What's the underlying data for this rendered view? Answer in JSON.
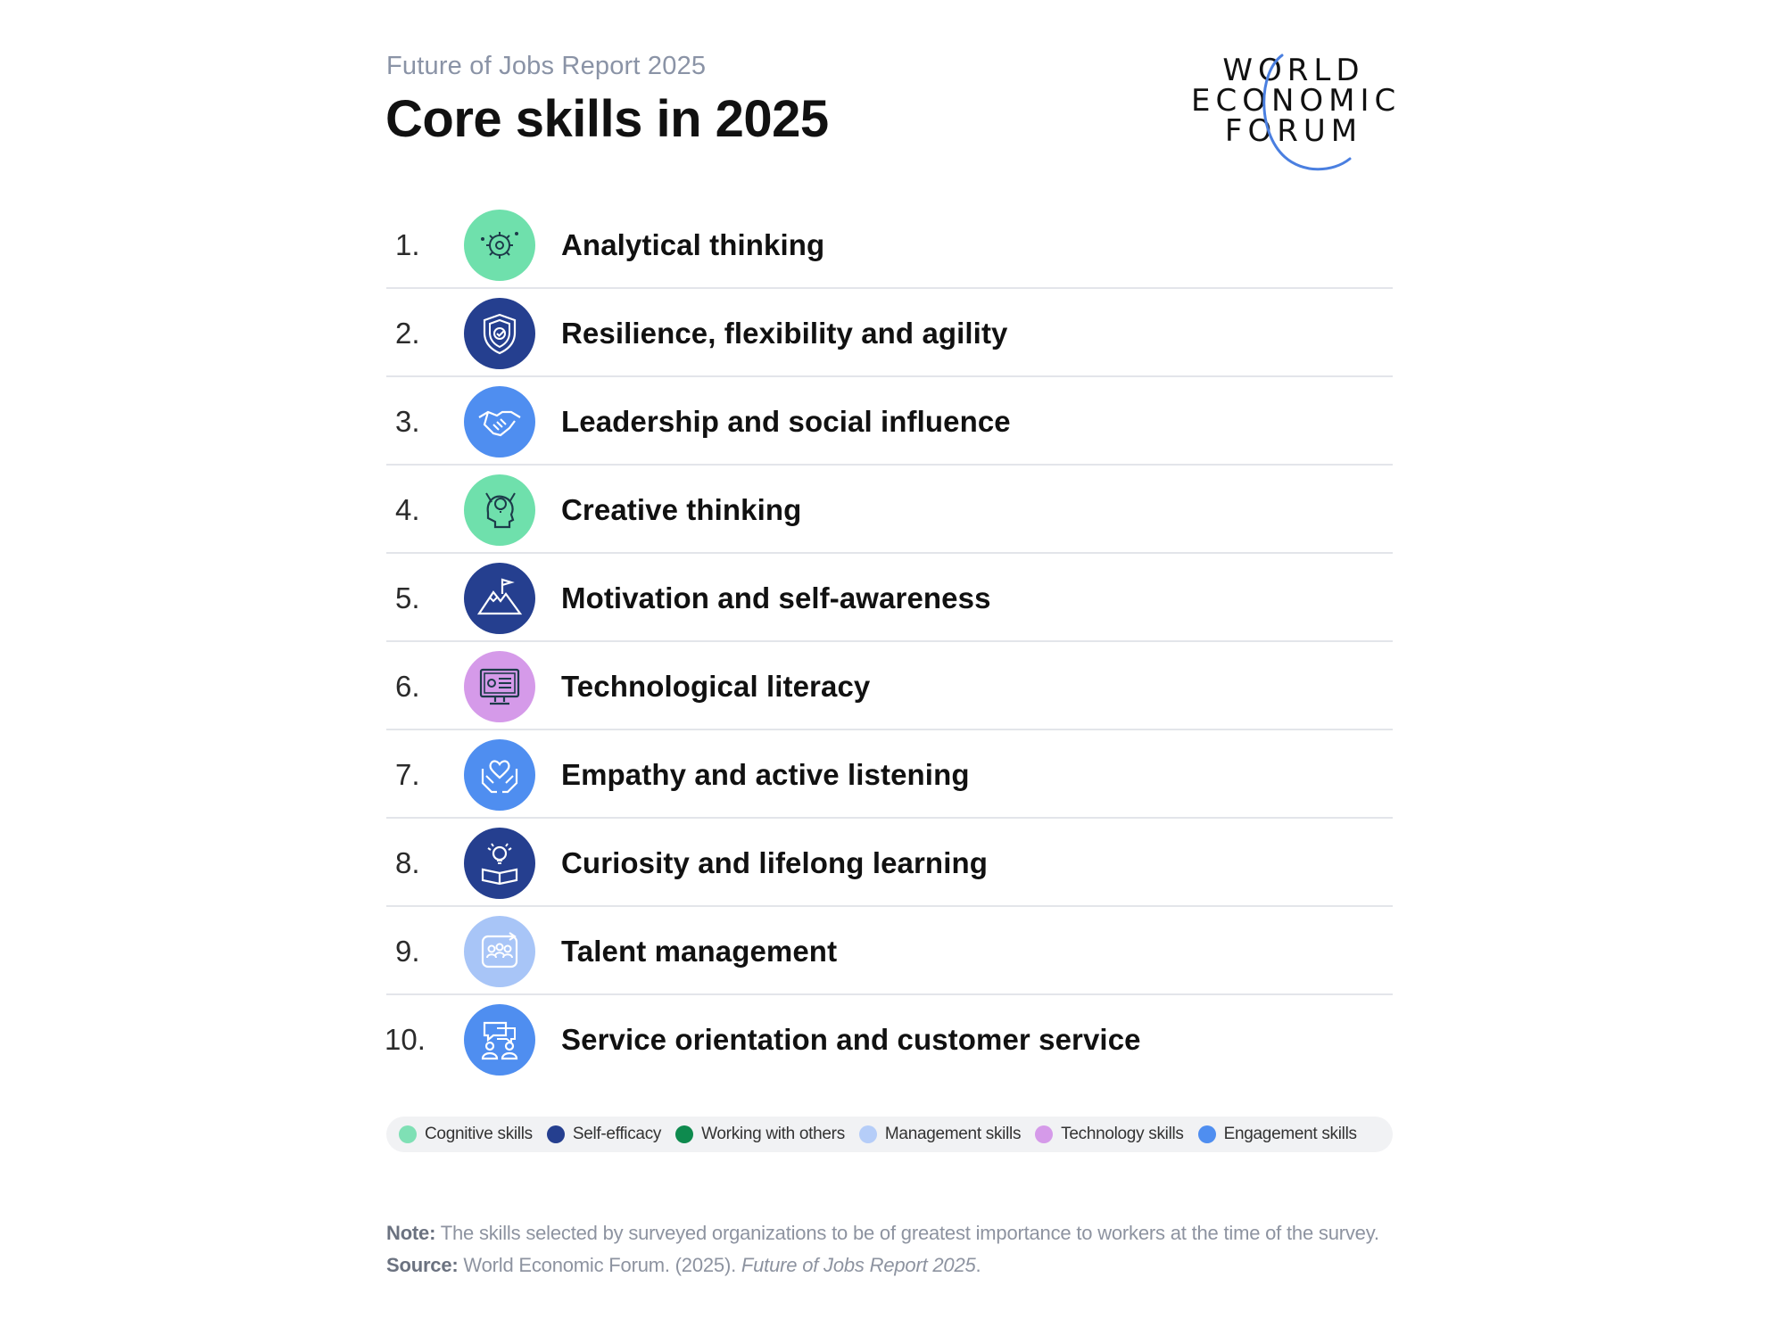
{
  "header": {
    "subtitle": "Future of Jobs Report 2025",
    "title": "Core skills in 2025"
  },
  "logo": {
    "line1": "WORLD",
    "line2": "ECONOMIC",
    "line3": "FORUM",
    "arc_color": "#4a7fe0"
  },
  "skills": [
    {
      "rank": "1.",
      "label": "Analytical thinking",
      "category": "Cognitive skills",
      "icon": "brain-gear-icon",
      "color": "#6fe0ac"
    },
    {
      "rank": "2.",
      "label": "Resilience, flexibility and agility",
      "category": "Self-efficacy",
      "icon": "shield-check-icon",
      "color": "#253f8f"
    },
    {
      "rank": "3.",
      "label": "Leadership and social influence",
      "category": "Engagement skills",
      "icon": "handshake-icon",
      "color": "#4f8ef0"
    },
    {
      "rank": "4.",
      "label": "Creative thinking",
      "category": "Cognitive skills",
      "icon": "head-lightbulb-icon",
      "color": "#6fe0ac"
    },
    {
      "rank": "5.",
      "label": "Motivation and self-awareness",
      "category": "Self-efficacy",
      "icon": "mountain-flag-icon",
      "color": "#253f8f"
    },
    {
      "rank": "6.",
      "label": "Technological literacy",
      "category": "Technology skills",
      "icon": "monitor-settings-icon",
      "color": "#d59ae9"
    },
    {
      "rank": "7.",
      "label": "Empathy and active listening",
      "category": "Engagement skills",
      "icon": "hands-heart-icon",
      "color": "#4f8ef0"
    },
    {
      "rank": "8.",
      "label": "Curiosity and lifelong learning",
      "category": "Self-efficacy",
      "icon": "book-lightbulb-icon",
      "color": "#253f8f"
    },
    {
      "rank": "9.",
      "label": "Talent management",
      "category": "Management skills",
      "icon": "people-cycle-icon",
      "color": "#a8c5f7"
    },
    {
      "rank": "10.",
      "label": "Service orientation and customer service",
      "category": "Engagement skills",
      "icon": "people-chat-icon",
      "color": "#4f8ef0"
    }
  ],
  "legend": [
    {
      "label": "Cognitive skills",
      "color": "#7fe0b5"
    },
    {
      "label": "Self-efficacy",
      "color": "#253f8f"
    },
    {
      "label": "Working with others",
      "color": "#0e8a4e"
    },
    {
      "label": "Management skills",
      "color": "#b5cdf8"
    },
    {
      "label": "Technology skills",
      "color": "#d59ae9"
    },
    {
      "label": "Engagement skills",
      "color": "#4f8ef0"
    }
  ],
  "footer": {
    "note_label": "Note:",
    "note_text": " The skills selected by surveyed organizations to be of greatest importance to workers at the time of the survey.",
    "source_label": "Source:",
    "source_text": " World Economic Forum. (2025). ",
    "source_title": "Future of Jobs Report 2025",
    "source_end": "."
  }
}
